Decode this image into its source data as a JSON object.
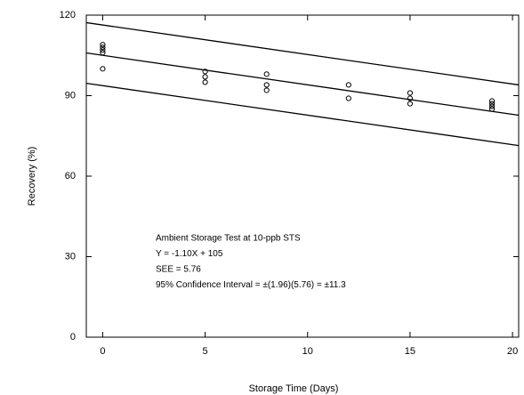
{
  "chart_data": {
    "type": "scatter",
    "x_label": "Storage Time (Days)",
    "y_label": "Recovery (%)",
    "x": [
      0,
      0,
      0,
      0,
      0,
      5,
      5,
      5,
      8,
      8,
      8,
      12,
      12,
      15,
      15,
      15,
      19,
      19,
      19,
      19
    ],
    "values": [
      109,
      108,
      107,
      106,
      100,
      99,
      97,
      95,
      98,
      94,
      92,
      94,
      89,
      91,
      89,
      87,
      88,
      87,
      86,
      85
    ],
    "color": "#000000",
    "lines": [
      {
        "x": [
          -0.8,
          20.3
        ],
        "values": [
          117.2,
          94.0
        ]
      },
      {
        "x": [
          -0.8,
          20.3
        ],
        "values": [
          105.9,
          82.7
        ]
      },
      {
        "x": [
          -0.8,
          20.3
        ],
        "values": [
          94.6,
          71.4
        ]
      }
    ],
    "annotations": [
      "Ambient Storage Test at 10-ppb STS",
      "Y = -1.10X + 105",
      "SEE = 5.76",
      "95% Confidence Interval = ±(1.96)(5.76) = ±11.3"
    ],
    "xlim": [
      -0.8,
      20.3
    ],
    "xticks": [
      0,
      5,
      10,
      15,
      20
    ],
    "ylim": [
      0,
      120
    ],
    "yticks": [
      0,
      30,
      60,
      90,
      120
    ]
  }
}
